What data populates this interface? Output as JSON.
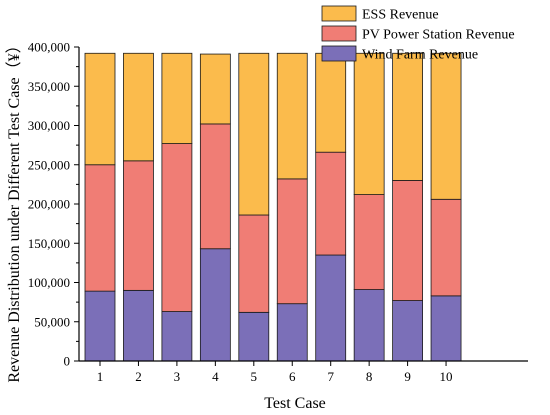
{
  "chart_data": {
    "type": "bar",
    "stacked": true,
    "categories": [
      "1",
      "2",
      "3",
      "4",
      "5",
      "6",
      "7",
      "8",
      "9",
      "10"
    ],
    "series": [
      {
        "name": "Wind Farm Revenue",
        "color": "#7b6fb8",
        "values": [
          89000,
          90000,
          63000,
          143000,
          62000,
          73000,
          135000,
          91000,
          77000,
          83000
        ]
      },
      {
        "name": "PV Power Station Revenue",
        "color": "#f07d75",
        "values": [
          161000,
          165000,
          214000,
          159000,
          124000,
          159000,
          131000,
          121000,
          153000,
          123000
        ]
      },
      {
        "name": "ESS Revenue",
        "color": "#fbbb4c",
        "values": [
          142000,
          137000,
          115000,
          89000,
          206000,
          160000,
          126000,
          180000,
          162000,
          186000
        ]
      }
    ],
    "title": "",
    "xlabel": "Test Case",
    "ylabel": "Revenue Distribution under Different Test Case（¥）",
    "ylim": [
      0,
      400000
    ],
    "yticks": [
      "0",
      "50,000",
      "100,000",
      "150,000",
      "200,000",
      "250,000",
      "300,000",
      "350,000",
      "400,000"
    ],
    "grid": false,
    "legend_position": "top-right"
  }
}
